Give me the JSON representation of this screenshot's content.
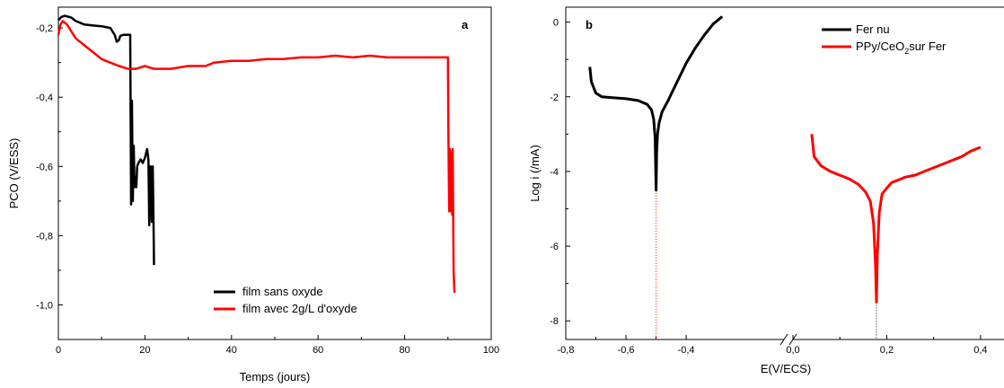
{
  "chart_data": [
    {
      "type": "line",
      "panel_label": "a",
      "xlabel": "Temps (jours)",
      "ylabel": "PCO (V/ESS)",
      "xlim": [
        0,
        100
      ],
      "ylim": [
        -1.1,
        -0.14
      ],
      "xticks": [
        {
          "v": 0,
          "t": "0"
        },
        {
          "v": 20,
          "t": "20"
        },
        {
          "v": 40,
          "t": "40"
        },
        {
          "v": 60,
          "t": "60"
        },
        {
          "v": 80,
          "t": "80"
        },
        {
          "v": 100,
          "t": "100"
        }
      ],
      "yticks": [
        {
          "v": -0.2,
          "t": "-0,2"
        },
        {
          "v": -0.4,
          "t": "-0,4"
        },
        {
          "v": -0.6,
          "t": "-0,6"
        },
        {
          "v": -0.8,
          "t": "-0,8"
        },
        {
          "v": -1.0,
          "t": "-1,0"
        }
      ],
      "legend_position": "bottom-right",
      "series": [
        {
          "name": "film sans oxyde",
          "color": "#000000",
          "x": [
            0,
            0.7,
            1.5,
            3,
            4,
            5,
            6,
            8,
            10,
            12,
            13,
            13.5,
            14,
            14.3,
            15,
            16,
            16.6,
            16.8,
            17.0,
            17.2,
            17.4,
            17.6,
            17.8,
            18.0,
            18.2,
            18.5,
            19,
            19.5,
            20,
            20.5,
            20.8,
            21.0,
            21.3,
            21.6,
            21.8,
            22.0,
            22.1
          ],
          "y": [
            -0.178,
            -0.168,
            -0.165,
            -0.17,
            -0.18,
            -0.185,
            -0.19,
            -0.193,
            -0.195,
            -0.2,
            -0.22,
            -0.24,
            -0.235,
            -0.223,
            -0.22,
            -0.22,
            -0.22,
            -0.71,
            -0.41,
            -0.7,
            -0.54,
            -0.66,
            -0.63,
            -0.66,
            -0.6,
            -0.59,
            -0.58,
            -0.59,
            -0.575,
            -0.55,
            -0.58,
            -0.77,
            -0.6,
            -0.76,
            -0.6,
            -0.77,
            -0.885
          ]
        },
        {
          "name": "film avec 2g/L d'oxyde",
          "color": "#ff0000",
          "x": [
            0,
            0.5,
            1,
            2,
            3,
            4,
            6,
            8,
            10,
            12,
            14,
            16,
            18,
            20,
            22,
            26,
            30,
            34,
            36,
            40,
            44,
            48,
            52,
            56,
            60,
            64,
            68,
            72,
            76,
            80,
            84,
            88,
            90,
            90.1,
            90.3,
            90.5,
            90.7,
            90.9,
            91.0,
            91.1,
            91.3,
            91.5,
            91.6
          ],
          "y": [
            -0.22,
            -0.19,
            -0.18,
            -0.19,
            -0.21,
            -0.23,
            -0.25,
            -0.27,
            -0.29,
            -0.3,
            -0.31,
            -0.318,
            -0.318,
            -0.31,
            -0.318,
            -0.318,
            -0.31,
            -0.31,
            -0.3,
            -0.295,
            -0.295,
            -0.29,
            -0.29,
            -0.285,
            -0.285,
            -0.28,
            -0.285,
            -0.28,
            -0.285,
            -0.285,
            -0.285,
            -0.285,
            -0.285,
            -0.5,
            -0.73,
            -0.55,
            -0.73,
            -0.56,
            -0.74,
            -0.55,
            -0.9,
            -0.96,
            -0.965
          ]
        }
      ]
    },
    {
      "type": "line",
      "panel_label": "b",
      "xlabel": "E(V/ECS)",
      "ylabel": "Log i (/mA)",
      "xlim": [
        -0.8,
        0.45
      ],
      "ylim": [
        -8.5,
        0.4
      ],
      "axis_break_at": -0.075,
      "xticks": [
        {
          "v": -0.8,
          "t": "-0,8"
        },
        {
          "v": -0.6,
          "t": "-0,6"
        },
        {
          "v": -0.4,
          "t": "-0,4"
        },
        {
          "v": 0.0,
          "t": "0,0"
        },
        {
          "v": 0.2,
          "t": "0,2"
        },
        {
          "v": 0.4,
          "t": "0,4"
        }
      ],
      "yticks": [
        {
          "v": 0,
          "t": "0"
        },
        {
          "v": -2,
          "t": "-2"
        },
        {
          "v": -4,
          "t": "-4"
        },
        {
          "v": -6,
          "t": "-6"
        },
        {
          "v": -8,
          "t": "-8"
        }
      ],
      "legend_position": "top-right",
      "series": [
        {
          "name": "Fer nu",
          "color": "#000000",
          "x": [
            -0.72,
            -0.715,
            -0.7,
            -0.68,
            -0.65,
            -0.6,
            -0.56,
            -0.53,
            -0.515,
            -0.508,
            -0.503,
            -0.5,
            -0.498,
            -0.495,
            -0.49,
            -0.48,
            -0.46,
            -0.43,
            -0.4,
            -0.37,
            -0.34,
            -0.31,
            -0.28
          ],
          "y": [
            -1.2,
            -1.6,
            -1.9,
            -2.0,
            -2.02,
            -2.05,
            -2.1,
            -2.2,
            -2.35,
            -2.6,
            -3.1,
            -4.5,
            -3.5,
            -3.0,
            -2.7,
            -2.4,
            -2.1,
            -1.6,
            -1.1,
            -0.7,
            -0.35,
            -0.05,
            0.15
          ]
        },
        {
          "name": "PPy/CeO2sur Fer",
          "name_parts": [
            "PPy/CeO",
            "2",
            "sur Fer"
          ],
          "color": "#ff0000",
          "x": [
            0.04,
            0.045,
            0.06,
            0.08,
            0.1,
            0.12,
            0.14,
            0.155,
            0.165,
            0.172,
            0.176,
            0.178,
            0.18,
            0.184,
            0.19,
            0.2,
            0.21,
            0.22,
            0.24,
            0.26,
            0.28,
            0.32,
            0.36,
            0.38,
            0.4
          ],
          "y": [
            -3.0,
            -3.6,
            -3.85,
            -4.0,
            -4.1,
            -4.2,
            -4.35,
            -4.55,
            -4.8,
            -5.4,
            -6.5,
            -7.5,
            -6.2,
            -5.1,
            -4.6,
            -4.45,
            -4.3,
            -4.25,
            -4.15,
            -4.1,
            -4.0,
            -3.8,
            -3.6,
            -3.45,
            -3.35
          ]
        }
      ],
      "ecorr_lines": [
        {
          "x": -0.5,
          "y_from": -4.5,
          "color": "#ff0000"
        },
        {
          "x": 0.178,
          "y_from": -7.5,
          "color": "#000000"
        }
      ]
    }
  ]
}
